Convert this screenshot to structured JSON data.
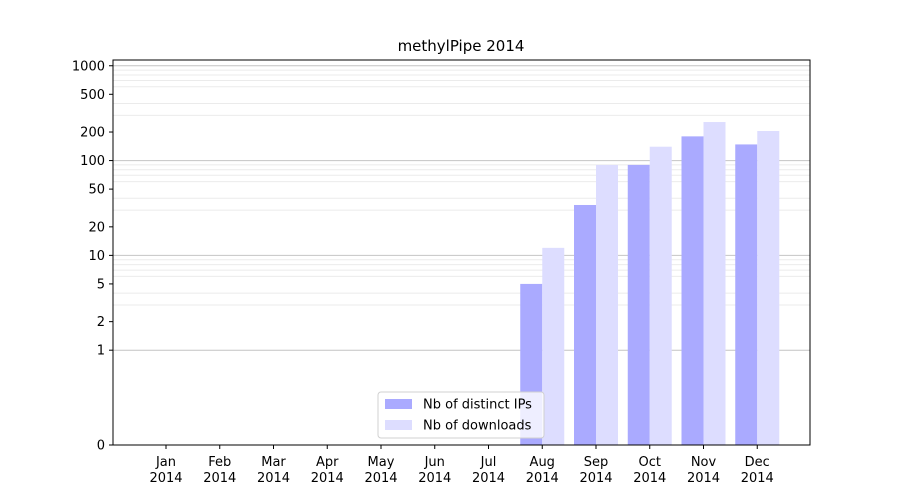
{
  "chart_data": {
    "type": "bar",
    "title": "methylPipe 2014",
    "xlabel": "",
    "ylabel": "",
    "y_scale": "symlog",
    "y_ticks": [
      0,
      1,
      2,
      5,
      10,
      20,
      50,
      100,
      200,
      500,
      1000
    ],
    "categories": [
      "Jan\n2014",
      "Feb\n2014",
      "Mar\n2014",
      "Apr\n2014",
      "May\n2014",
      "Jun\n2014",
      "Jul\n2014",
      "Aug\n2014",
      "Sep\n2014",
      "Oct\n2014",
      "Nov\n2014",
      "Dec\n2014"
    ],
    "series": [
      {
        "name": "Nb of distinct IPs",
        "color": "#aaaaff",
        "values": [
          0,
          0,
          0,
          0,
          0,
          0,
          0,
          5,
          34,
          90,
          180,
          148
        ]
      },
      {
        "name": "Nb of downloads",
        "color": "#ddddff",
        "values": [
          0,
          0,
          0,
          0,
          0,
          0,
          0,
          12,
          90,
          140,
          255,
          205
        ]
      }
    ],
    "grid": "y-major-and-minor",
    "legend": "lower-center"
  }
}
